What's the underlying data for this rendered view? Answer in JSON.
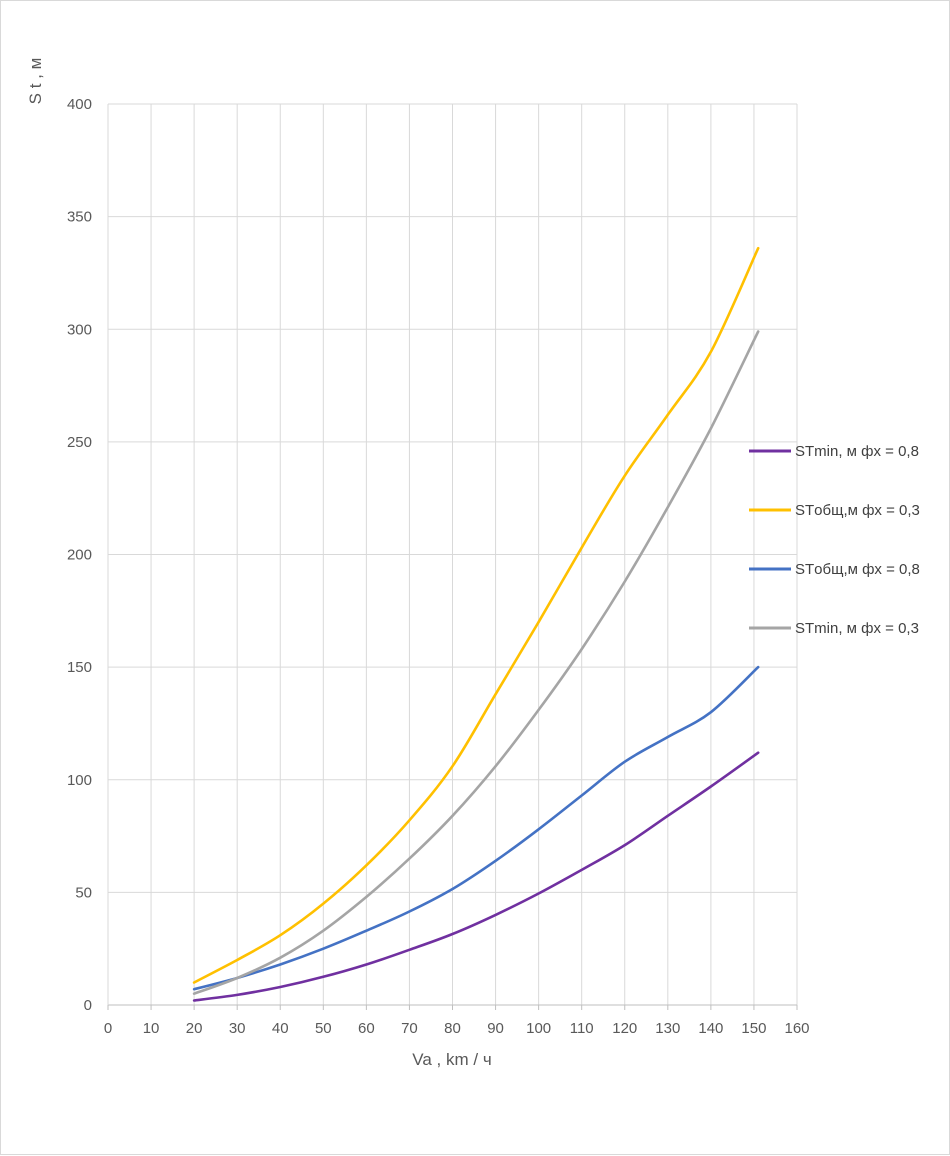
{
  "chart_data": {
    "type": "line",
    "xlabel": "Va , km / ч",
    "ylabel": "S t , м",
    "xlim": [
      0,
      160
    ],
    "ylim": [
      0,
      400
    ],
    "x_ticks": [
      0,
      10,
      20,
      30,
      40,
      50,
      60,
      70,
      80,
      90,
      100,
      110,
      120,
      130,
      140,
      150,
      160
    ],
    "y_ticks": [
      0,
      50,
      100,
      150,
      200,
      250,
      300,
      350,
      400
    ],
    "grid": true,
    "legend_position": "right",
    "x": [
      20,
      30,
      40,
      50,
      60,
      70,
      80,
      90,
      100,
      110,
      120,
      130,
      140,
      151
    ],
    "series": [
      {
        "name": "STmin, м фх = 0,8",
        "color": "#7030a0",
        "values": [
          2,
          4.5,
          8,
          12.5,
          18,
          24.5,
          31.5,
          40,
          49.5,
          60,
          71,
          84,
          97,
          112
        ]
      },
      {
        "name": "STобщ,м фх = 0,3",
        "color": "#ffc000",
        "values": [
          10,
          20,
          31,
          45,
          62,
          82,
          106,
          138,
          170,
          203,
          235,
          262,
          290,
          336
        ]
      },
      {
        "name": "STобщ,м фх = 0,8",
        "color": "#4472c4",
        "values": [
          7,
          12,
          18,
          25,
          33,
          41.5,
          51.5,
          64,
          78,
          93,
          108,
          119,
          130,
          150
        ]
      },
      {
        "name": "STmin, м фх = 0,3",
        "color": "#a5a5a5",
        "values": [
          5,
          12,
          21,
          33,
          48,
          65,
          84,
          106,
          131,
          158,
          188,
          221,
          256,
          299
        ]
      }
    ]
  }
}
